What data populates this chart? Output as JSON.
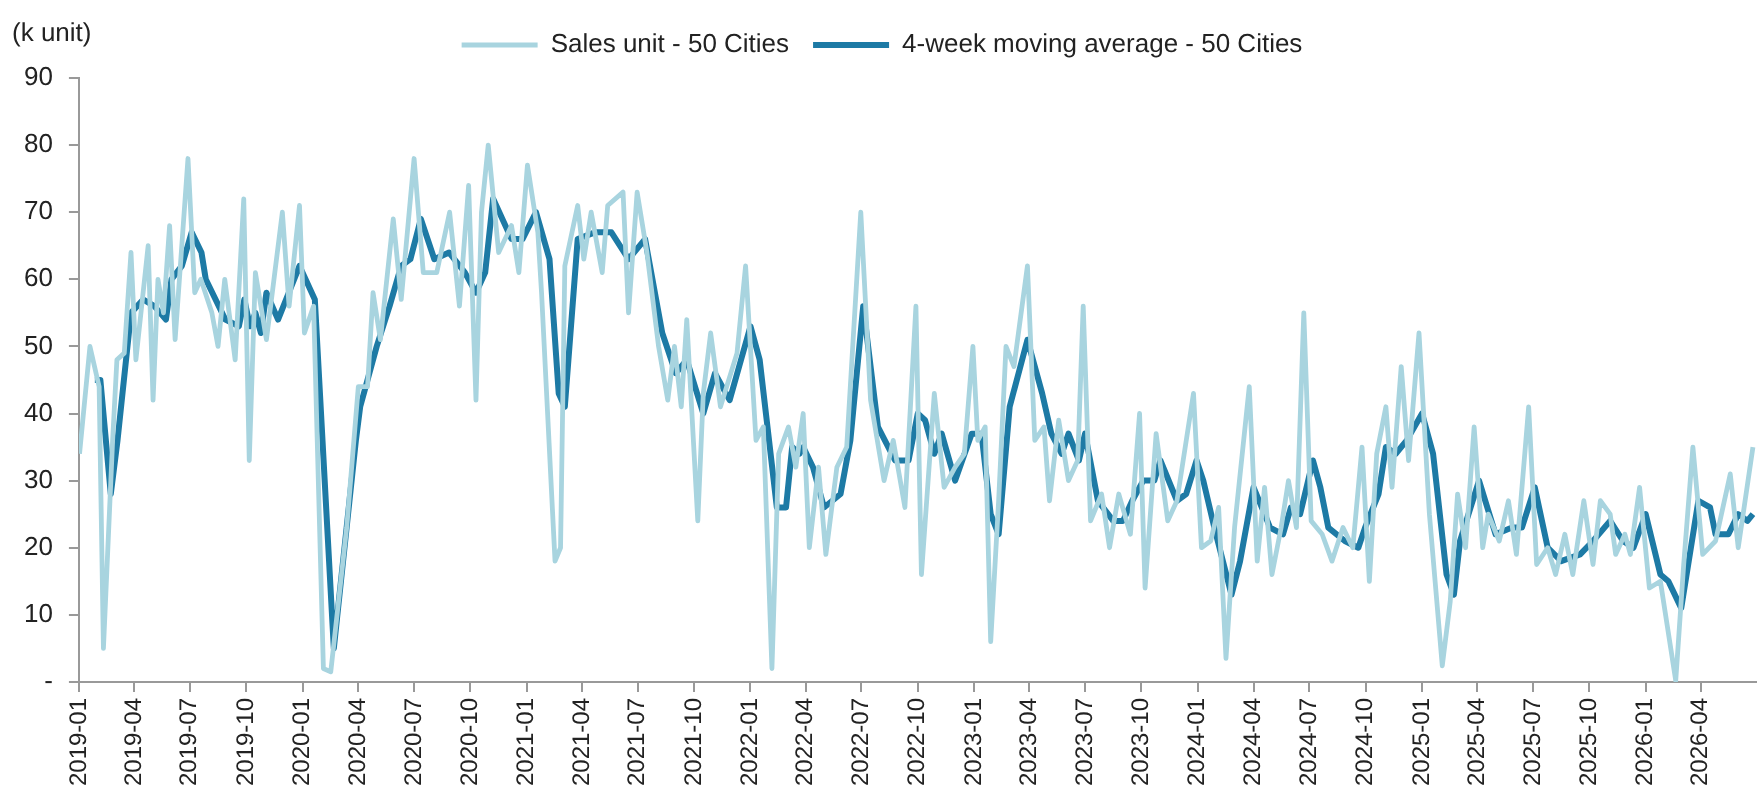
{
  "chart_data": {
    "type": "line",
    "ylabel": "(k unit)",
    "legend": "top",
    "grid": false,
    "xlim": [
      "2019-01-01",
      "2026-06-30"
    ],
    "xticks": [
      "2019-01",
      "2019-04",
      "2019-07",
      "2019-10",
      "2020-01",
      "2020-04",
      "2020-07",
      "2020-10",
      "2021-01",
      "2021-04",
      "2021-07",
      "2021-10",
      "2022-01",
      "2022-04",
      "2022-07",
      "2022-10",
      "2023-01",
      "2023-04",
      "2023-07",
      "2023-10",
      "2024-01",
      "2024-04",
      "2024-07",
      "2024-10",
      "2025-01",
      "2025-04",
      "2025-07",
      "2025-10",
      "2026-01",
      "2026-04"
    ],
    "ylim": [
      0,
      90
    ],
    "yticks": [
      {
        "value": 0,
        "label": "-"
      },
      10,
      20,
      30,
      40,
      50,
      60,
      70,
      80,
      90
    ],
    "series": [
      {
        "name": "Sales unit - 50 Cities",
        "color": "#a8d4df",
        "x": [
          "2019-01-02",
          "2019-01-19",
          "2019-02-03",
          "2019-02-10",
          "2019-02-25",
          "2019-03-04",
          "2019-03-16",
          "2019-03-27",
          "2019-04-04",
          "2019-04-24",
          "2019-05-02",
          "2019-05-10",
          "2019-05-19",
          "2019-05-29",
          "2019-06-07",
          "2019-06-28",
          "2019-07-09",
          "2019-07-19",
          "2019-08-06",
          "2019-08-16",
          "2019-08-27",
          "2019-09-13",
          "2019-09-27",
          "2019-10-06",
          "2019-10-16",
          "2019-11-03",
          "2019-11-29",
          "2019-12-10",
          "2019-12-27",
          "2020-01-04",
          "2020-01-19",
          "2020-02-04",
          "2020-02-16",
          "2020-03-13",
          "2020-04-01",
          "2020-04-16",
          "2020-04-25",
          "2020-05-07",
          "2020-05-28",
          "2020-06-10",
          "2020-07-01",
          "2020-07-16",
          "2020-08-07",
          "2020-08-28",
          "2020-09-13",
          "2020-09-28",
          "2020-10-10",
          "2020-10-19",
          "2020-10-30",
          "2020-11-16",
          "2020-12-07",
          "2020-12-19",
          "2021-01-02",
          "2021-01-19",
          "2021-01-25",
          "2021-02-16",
          "2021-02-25",
          "2021-03-04",
          "2021-03-25",
          "2021-04-04",
          "2021-04-16",
          "2021-05-04",
          "2021-05-13",
          "2021-06-07",
          "2021-06-16",
          "2021-06-30",
          "2021-07-16",
          "2021-08-04",
          "2021-08-19",
          "2021-08-30",
          "2021-09-10",
          "2021-09-19",
          "2021-09-28",
          "2021-10-07",
          "2021-10-16",
          "2021-10-28",
          "2021-11-13",
          "2021-12-10",
          "2021-12-24",
          "2022-01-10",
          "2022-01-22",
          "2022-02-05",
          "2022-02-16",
          "2022-03-04",
          "2022-03-16",
          "2022-03-28",
          "2022-04-07",
          "2022-04-22",
          "2022-05-04",
          "2022-05-22",
          "2022-06-07",
          "2022-06-30",
          "2022-07-16",
          "2022-08-07",
          "2022-08-22",
          "2022-09-10",
          "2022-09-28",
          "2022-10-07",
          "2022-10-28",
          "2022-11-13",
          "2022-12-01",
          "2022-12-16",
          "2022-12-30",
          "2023-01-07",
          "2023-01-19",
          "2023-01-28",
          "2023-02-10",
          "2023-02-22",
          "2023-03-07",
          "2023-03-29",
          "2023-04-10",
          "2023-04-25",
          "2023-05-04",
          "2023-05-19",
          "2023-06-04",
          "2023-06-19",
          "2023-06-28",
          "2023-07-10",
          "2023-07-28",
          "2023-08-10",
          "2023-08-25",
          "2023-09-13",
          "2023-09-28",
          "2023-10-07",
          "2023-10-25",
          "2023-11-13",
          "2023-11-28",
          "2023-12-25",
          "2024-01-07",
          "2024-01-22",
          "2024-02-04",
          "2024-02-16",
          "2024-03-01",
          "2024-03-25",
          "2024-04-07",
          "2024-04-19",
          "2024-05-01",
          "2024-05-16",
          "2024-05-28",
          "2024-06-10",
          "2024-06-22",
          "2024-07-04",
          "2024-07-22",
          "2024-08-07",
          "2024-08-25",
          "2024-09-10",
          "2024-09-25",
          "2024-10-07",
          "2024-10-19",
          "2024-11-03",
          "2024-11-13",
          "2024-11-28",
          "2024-12-10",
          "2024-12-27",
          "2025-01-13",
          "2025-02-03",
          "2025-02-16",
          "2025-02-28",
          "2025-03-13",
          "2025-03-27",
          "2025-04-10",
          "2025-04-19",
          "2025-05-07",
          "2025-05-22",
          "2025-06-04",
          "2025-06-24",
          "2025-07-07",
          "2025-07-25",
          "2025-08-07",
          "2025-08-22",
          "2025-09-04",
          "2025-09-22",
          "2025-10-07",
          "2025-10-19",
          "2025-11-04",
          "2025-11-13",
          "2025-11-28",
          "2025-12-07",
          "2025-12-22",
          "2026-01-07",
          "2026-01-25",
          "2026-02-19",
          "2026-03-04",
          "2026-03-19",
          "2026-04-04",
          "2026-04-25",
          "2026-05-19",
          "2026-06-01",
          "2026-06-25"
        ],
        "values": [
          34,
          50,
          44,
          5,
          36,
          48,
          49,
          64,
          48,
          65,
          42,
          60,
          55,
          68,
          51,
          78,
          58,
          60,
          55,
          50,
          60,
          48,
          72,
          33,
          61,
          51,
          70,
          56,
          71,
          52,
          56,
          2,
          1.5,
          23,
          44,
          44,
          58,
          51,
          69,
          57,
          78,
          61,
          61,
          70,
          56,
          74,
          42,
          70,
          80,
          64,
          68,
          61,
          77,
          67,
          58,
          18,
          20,
          62,
          71,
          63,
          70,
          61,
          71,
          73,
          55,
          73,
          64,
          50,
          42,
          50,
          41,
          54,
          39,
          24,
          43,
          52,
          41,
          49,
          62,
          36,
          38,
          2,
          34,
          38,
          32,
          40,
          20,
          32,
          19,
          32,
          35,
          70,
          42,
          30,
          36,
          26,
          56,
          16,
          43,
          29,
          32,
          34,
          50,
          36,
          38,
          6,
          27,
          50,
          47,
          62,
          36,
          38,
          27,
          39,
          30,
          33,
          56,
          24,
          28,
          20,
          28,
          22,
          40,
          14,
          37,
          24,
          27,
          43,
          20,
          21,
          26,
          3.5,
          23,
          44,
          18,
          29,
          16,
          23,
          30,
          23,
          55,
          24,
          22,
          18,
          23,
          20,
          35,
          15,
          34,
          41,
          29,
          47,
          33,
          52,
          25,
          2.4,
          12,
          28,
          20,
          38,
          20,
          25,
          21,
          27,
          19,
          41,
          17.5,
          20,
          16,
          22,
          16,
          27,
          17.5,
          27,
          25,
          19,
          22,
          19,
          29,
          14,
          15,
          0.2,
          17.5,
          35,
          19,
          21,
          31,
          20,
          35
        ]
      },
      {
        "name": "4-week moving average - 50 Cities",
        "color": "#1d7aa5",
        "x": [
          "2019-01-27",
          "2019-02-05",
          "2019-02-22",
          "2019-03-05",
          "2019-03-27",
          "2019-04-16",
          "2019-05-04",
          "2019-05-23",
          "2019-06-01",
          "2019-06-18",
          "2019-07-04",
          "2019-07-20",
          "2019-07-27",
          "2019-08-28",
          "2019-09-19",
          "2019-09-28",
          "2019-10-07",
          "2019-10-16",
          "2019-10-25",
          "2019-11-03",
          "2019-11-22",
          "2019-12-27",
          "2020-01-21",
          "2020-02-21",
          "2020-03-28",
          "2020-04-04",
          "2020-05-01",
          "2020-05-22",
          "2020-06-10",
          "2020-06-25",
          "2020-07-12",
          "2020-08-03",
          "2020-08-27",
          "2020-09-22",
          "2020-10-10",
          "2020-10-25",
          "2020-11-07",
          "2020-12-07",
          "2020-12-25",
          "2021-01-16",
          "2021-02-07",
          "2021-02-22",
          "2021-03-04",
          "2021-03-25",
          "2021-04-22",
          "2021-05-19",
          "2021-06-16",
          "2021-07-13",
          "2021-08-10",
          "2021-09-01",
          "2021-09-19",
          "2021-10-16",
          "2021-11-04",
          "2021-11-28",
          "2022-01-01",
          "2022-01-16",
          "2022-02-13",
          "2022-02-28",
          "2022-03-10",
          "2022-03-22",
          "2022-03-28",
          "2022-04-13",
          "2022-05-01",
          "2022-05-28",
          "2022-06-13",
          "2022-07-04",
          "2022-07-28",
          "2022-08-25",
          "2022-09-16",
          "2022-10-01",
          "2022-10-13",
          "2022-10-28",
          "2022-11-09",
          "2022-12-01",
          "2022-12-28",
          "2023-01-13",
          "2023-01-28",
          "2023-02-10",
          "2023-02-28",
          "2023-03-29",
          "2023-04-22",
          "2023-05-07",
          "2023-05-24",
          "2023-06-04",
          "2023-06-21",
          "2023-07-01",
          "2023-07-22",
          "2023-08-16",
          "2023-09-01",
          "2023-09-16",
          "2023-10-04",
          "2023-10-22",
          "2023-11-01",
          "2023-11-28",
          "2023-12-13",
          "2023-12-30",
          "2024-01-10",
          "2024-01-28",
          "2024-02-25",
          "2024-03-10",
          "2024-04-01",
          "2024-04-28",
          "2024-05-19",
          "2024-06-01",
          "2024-06-16",
          "2024-07-07",
          "2024-07-19",
          "2024-08-01",
          "2024-08-28",
          "2024-09-19",
          "2024-09-30",
          "2024-10-22",
          "2024-11-03",
          "2024-11-19",
          "2024-12-07",
          "2025-01-01",
          "2025-01-19",
          "2025-02-10",
          "2025-02-22",
          "2025-03-04",
          "2025-04-04",
          "2025-05-01",
          "2025-05-28",
          "2025-06-13",
          "2025-07-04",
          "2025-07-25",
          "2025-08-16",
          "2025-09-16",
          "2025-10-07",
          "2025-11-04",
          "2025-11-25",
          "2025-12-12",
          "2026-01-01",
          "2026-01-25",
          "2026-02-07",
          "2026-02-28",
          "2026-03-28",
          "2026-04-16",
          "2026-04-25",
          "2026-05-16",
          "2026-06-01",
          "2026-06-16",
          "2026-06-25"
        ],
        "values": [
          45,
          45,
          28,
          36,
          55,
          57,
          56,
          54,
          60,
          62,
          67,
          64,
          60,
          54,
          53,
          57,
          53,
          55,
          52,
          58,
          54,
          62,
          57,
          5,
          36,
          41,
          50,
          56,
          62,
          63,
          69,
          63,
          64,
          61,
          58,
          61,
          72,
          66,
          66,
          70,
          63,
          43,
          41,
          66,
          67,
          67,
          63,
          66,
          52,
          46,
          48,
          40,
          46,
          42,
          53,
          48,
          26,
          26,
          35,
          34,
          35,
          32,
          26,
          28,
          36,
          56,
          38,
          33,
          33,
          40,
          39,
          34,
          37,
          30,
          37,
          37,
          25,
          22,
          41,
          51,
          43,
          37,
          34,
          37,
          33,
          37,
          27,
          24,
          24,
          27,
          30,
          30,
          33,
          27,
          28,
          33,
          30,
          23,
          13,
          18,
          29,
          23,
          22,
          26,
          25,
          33,
          29,
          23,
          21,
          20,
          23,
          28,
          35,
          34,
          36,
          40,
          34,
          16,
          13,
          21,
          30,
          22,
          23,
          23,
          29,
          20,
          18,
          19,
          21,
          24,
          21,
          20,
          25,
          16,
          15,
          11,
          27,
          26,
          22,
          22,
          25,
          24,
          25
        ]
      }
    ]
  }
}
